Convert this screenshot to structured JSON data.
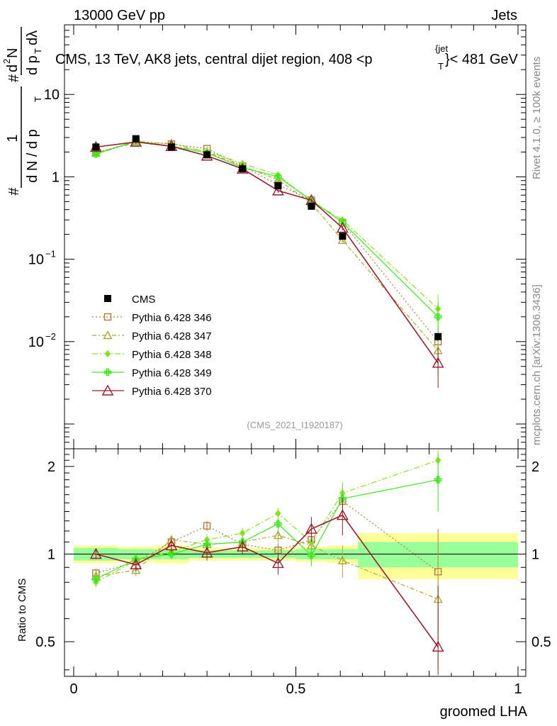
{
  "header": {
    "left": "13000 GeV pp",
    "right": "Jets"
  },
  "chart_data": {
    "type": "scatter",
    "title": "CMS, 13 TeV, AK8 jets, central dijet region, 408 <p_T^{jet}< 481 GeV",
    "title_parts": {
      "pre": "CMS, 13 TeV, AK8 jets, central dijet region, 408 <",
      "p": "p",
      "sub": "T",
      "sup": "{jet",
      "post": "}< 481 GeV"
    },
    "xlabel": "groomed LHA",
    "ylabel_parts": [
      "#",
      "1",
      "d N / d p",
      "T",
      "#",
      "d",
      "2",
      "N",
      "d p",
      "T",
      "dλ"
    ],
    "ratio_ylabel": "Ratio to CMS",
    "xlim": [
      0,
      1
    ],
    "ylim": [
      0.0005,
      70
    ],
    "ratio_ylim": [
      0.38,
      2.3
    ],
    "x_ticks": [
      {
        "v": 0,
        "label": "0"
      },
      {
        "v": 0.5,
        "label": "0.5"
      },
      {
        "v": 1,
        "label": "1"
      }
    ],
    "y_ticks": [
      {
        "v": 0.01,
        "base": "10",
        "exp": "−2"
      },
      {
        "v": 0.1,
        "base": "10",
        "exp": "−1"
      },
      {
        "v": 1,
        "base": "1",
        "exp": ""
      },
      {
        "v": 10,
        "base": "10",
        "exp": ""
      }
    ],
    "ratio_ticks": [
      {
        "v": 0.5,
        "label": "0.5"
      },
      {
        "v": 1,
        "label": "1"
      },
      {
        "v": 2,
        "label": "2"
      }
    ],
    "bin_edges": [
      0,
      0.1,
      0.18,
      0.26,
      0.34,
      0.42,
      0.5,
      0.57,
      0.64,
      1.0
    ],
    "data": {
      "name": "CMS",
      "x": [
        0.05,
        0.14,
        0.22,
        0.3,
        0.38,
        0.46,
        0.535,
        0.605,
        0.82
      ],
      "y": [
        2.3,
        2.9,
        2.3,
        1.85,
        1.25,
        0.78,
        0.44,
        0.19,
        0.0115
      ],
      "band_stat": [
        0.05,
        0.04,
        0.04,
        0.03,
        0.03,
        0.03,
        0.04,
        0.04,
        0.1
      ],
      "band_tot": [
        0.07,
        0.06,
        0.07,
        0.05,
        0.05,
        0.05,
        0.06,
        0.07,
        0.18
      ]
    },
    "series": [
      {
        "name": "Pythia 6.428 346",
        "color": "#b07c3c",
        "marker": "square",
        "dash": "2,3",
        "y": [
          1.95,
          2.7,
          2.5,
          2.2,
          1.35,
          0.8,
          0.52,
          0.28,
          0.01
        ],
        "ratio": [
          0.86,
          0.94,
          1.1,
          1.25,
          1.08,
          1.03,
          1.12,
          1.52,
          0.87
        ],
        "rerr": [
          0.03,
          0.04,
          0.04,
          0.05,
          0.05,
          0.06,
          0.08,
          0.15,
          0.35
        ]
      },
      {
        "name": "Pythia 6.428 347",
        "color": "#a8a832",
        "marker": "triangle",
        "dash": "6,3,2,3",
        "y": [
          1.95,
          2.6,
          2.55,
          2.0,
          1.35,
          0.92,
          0.48,
          0.17,
          0.0078
        ],
        "ratio": [
          0.84,
          0.88,
          1.12,
          1.08,
          1.1,
          1.16,
          1.07,
          0.95,
          0.7
        ],
        "rerr": [
          0.03,
          0.04,
          0.04,
          0.05,
          0.05,
          0.06,
          0.08,
          0.12,
          0.3
        ]
      },
      {
        "name": "Pythia 6.428 348",
        "color": "#88e020",
        "marker": "diamond",
        "dash": "8,3,2,3",
        "y": [
          1.85,
          2.75,
          2.35,
          2.05,
          1.45,
          1.05,
          0.5,
          0.3,
          0.025
        ],
        "ratio": [
          0.8,
          0.95,
          1.02,
          1.12,
          1.18,
          1.38,
          1.1,
          1.62,
          2.1
        ],
        "rerr": [
          0.03,
          0.04,
          0.04,
          0.05,
          0.05,
          0.06,
          0.08,
          0.15,
          0.4
        ]
      },
      {
        "name": "Pythia 6.428 349",
        "color": "#3ce81c",
        "marker": "cross",
        "dash": "",
        "y": [
          1.9,
          2.7,
          2.35,
          1.95,
          1.3,
          1.0,
          0.52,
          0.28,
          0.02
        ],
        "ratio": [
          0.82,
          0.96,
          1.0,
          1.08,
          1.1,
          1.27,
          0.99,
          1.55,
          1.8
        ],
        "rerr": [
          0.03,
          0.04,
          0.04,
          0.05,
          0.05,
          0.06,
          0.08,
          0.15,
          0.4
        ]
      },
      {
        "name": "Pythia 6.428 370",
        "color": "#9b1c2c",
        "marker": "triangle-open",
        "dash": "",
        "y": [
          2.3,
          2.65,
          2.35,
          1.8,
          1.25,
          0.68,
          0.52,
          0.24,
          0.0055
        ],
        "ratio": [
          1.0,
          0.92,
          1.07,
          1.01,
          1.06,
          0.93,
          1.22,
          1.36,
          0.48
        ],
        "rerr": [
          0.04,
          0.05,
          0.06,
          0.06,
          0.06,
          0.08,
          0.12,
          0.2,
          0.3
        ]
      }
    ],
    "legend_location": "lower-left",
    "side_label_top": "Rivet 4.1.0, ≥ 100k events",
    "side_label_bottom": "mcplots.cern.ch [arXiv:1306.3436]",
    "analysis_id": "(CMS_2021_I1920187)"
  },
  "colors": {
    "band_tot": "#ffff99",
    "band_stat": "#99ff99",
    "data": "#000000"
  }
}
